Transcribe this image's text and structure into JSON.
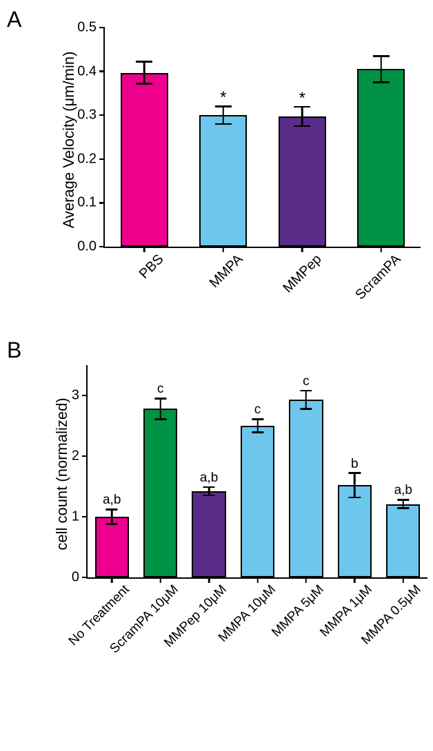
{
  "panelA": {
    "label": "A",
    "type": "bar",
    "y_axis_label": "Average Velocity (μm/min)",
    "ylim": [
      0,
      0.5
    ],
    "ytick_step": 0.1,
    "ytick_labels": [
      "0.0",
      "0.1",
      "0.2",
      "0.3",
      "0.4",
      "0.5"
    ],
    "categories": [
      "PBS",
      "MMPA",
      "MMPep",
      "ScramPA"
    ],
    "values": [
      0.397,
      0.3,
      0.297,
      0.405
    ],
    "errors_upper": [
      0.025,
      0.02,
      0.022,
      0.03
    ],
    "errors_lower": [
      0.025,
      0.02,
      0.022,
      0.03
    ],
    "bar_colors": [
      "#ec008c",
      "#6dc7ec",
      "#592c88",
      "#009245"
    ],
    "annotations": [
      "",
      "*",
      "*",
      ""
    ],
    "title_fontsize": 22,
    "label_fontsize": 20,
    "tick_fontsize": 20,
    "bar_width": 0.6,
    "background_color": "#ffffff",
    "axis_color": "#000000",
    "axis_linewidth": 2.5
  },
  "panelB": {
    "label": "B",
    "type": "bar",
    "y_axis_label": "cell count (normalized)",
    "ylim": [
      0,
      3.5
    ],
    "yticks": [
      0,
      1,
      2,
      3
    ],
    "ytick_labels": [
      "0",
      "1",
      "2",
      "3"
    ],
    "categories": [
      "No Treatment",
      "ScramPA 10μM",
      "MMPep 10μM",
      "MMPA 10μM",
      "MMPA 5μM",
      "MMPA 1μM",
      "MMPA 0.5μM"
    ],
    "values": [
      1.0,
      2.78,
      1.42,
      2.5,
      2.93,
      1.52,
      1.21
    ],
    "errors_upper": [
      0.12,
      0.17,
      0.07,
      0.11,
      0.15,
      0.2,
      0.07
    ],
    "errors_lower": [
      0.12,
      0.17,
      0.07,
      0.11,
      0.15,
      0.2,
      0.07
    ],
    "bar_colors": [
      "#ec008c",
      "#009245",
      "#592c88",
      "#6dc7ec",
      "#6dc7ec",
      "#6dc7ec",
      "#6dc7ec"
    ],
    "annotations": [
      "a,b",
      "c",
      "a,b",
      "c",
      "c",
      "b",
      "a,b"
    ],
    "title_fontsize": 22,
    "label_fontsize": 20,
    "tick_fontsize": 20,
    "bar_width": 0.7,
    "background_color": "#ffffff",
    "axis_color": "#000000",
    "axis_linewidth": 2.5
  }
}
